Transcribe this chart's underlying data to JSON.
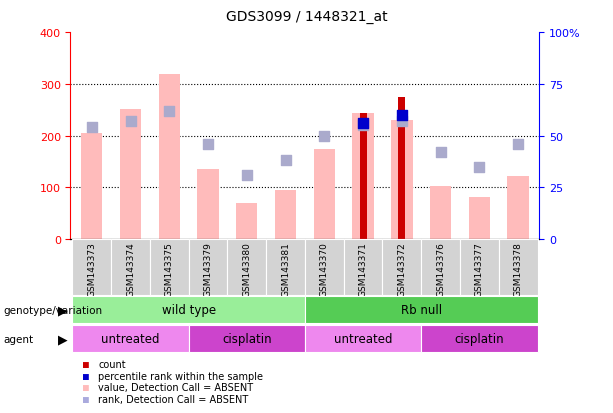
{
  "title": "GDS3099 / 1448321_at",
  "samples": [
    "GSM143373",
    "GSM143374",
    "GSM143375",
    "GSM143379",
    "GSM143380",
    "GSM143381",
    "GSM143370",
    "GSM143371",
    "GSM143372",
    "GSM143376",
    "GSM143377",
    "GSM143378"
  ],
  "value_absent": [
    205,
    252,
    320,
    136,
    70,
    95,
    175,
    243,
    230,
    103,
    82,
    122
  ],
  "rank_absent_pct": [
    54,
    57,
    62,
    46,
    31,
    38,
    50,
    55,
    57,
    42,
    35,
    46
  ],
  "count_present": [
    0,
    0,
    0,
    0,
    0,
    0,
    0,
    243,
    275,
    0,
    0,
    0
  ],
  "rank_present_pct": [
    0,
    0,
    0,
    0,
    0,
    0,
    0,
    56,
    60,
    0,
    0,
    0
  ],
  "left_yticks": [
    0,
    100,
    200,
    300,
    400
  ],
  "right_ytick_vals": [
    0,
    25,
    50,
    75,
    100
  ],
  "right_ytick_labels": [
    "0",
    "25",
    "50",
    "75",
    "100%"
  ],
  "ylim_left": [
    0,
    400
  ],
  "ylim_right": [
    0,
    100
  ],
  "groups": [
    {
      "label": "wild type",
      "start": 0,
      "end": 6,
      "color": "#99ee99"
    },
    {
      "label": "Rb null",
      "start": 6,
      "end": 12,
      "color": "#55cc55"
    }
  ],
  "agents": [
    {
      "label": "untreated",
      "start": 0,
      "end": 3,
      "color": "#ee88ee"
    },
    {
      "label": "cisplatin",
      "start": 3,
      "end": 6,
      "color": "#cc44cc"
    },
    {
      "label": "untreated",
      "start": 6,
      "end": 9,
      "color": "#ee88ee"
    },
    {
      "label": "cisplatin",
      "start": 9,
      "end": 12,
      "color": "#cc44cc"
    }
  ],
  "genotype_label": "genotype/variation",
  "agent_label": "agent",
  "legend_items": [
    {
      "label": "count",
      "color": "#cc0000"
    },
    {
      "label": "percentile rank within the sample",
      "color": "#0000cc"
    },
    {
      "label": "value, Detection Call = ABSENT",
      "color": "#ffbbbb"
    },
    {
      "label": "rank, Detection Call = ABSENT",
      "color": "#aaaadd"
    }
  ],
  "color_count": "#cc0000",
  "color_rank_present": "#0000cc",
  "color_value_absent": "#ffbbbb",
  "color_rank_absent": "#aaaacc",
  "sample_bg_color": "#d3d3d3"
}
